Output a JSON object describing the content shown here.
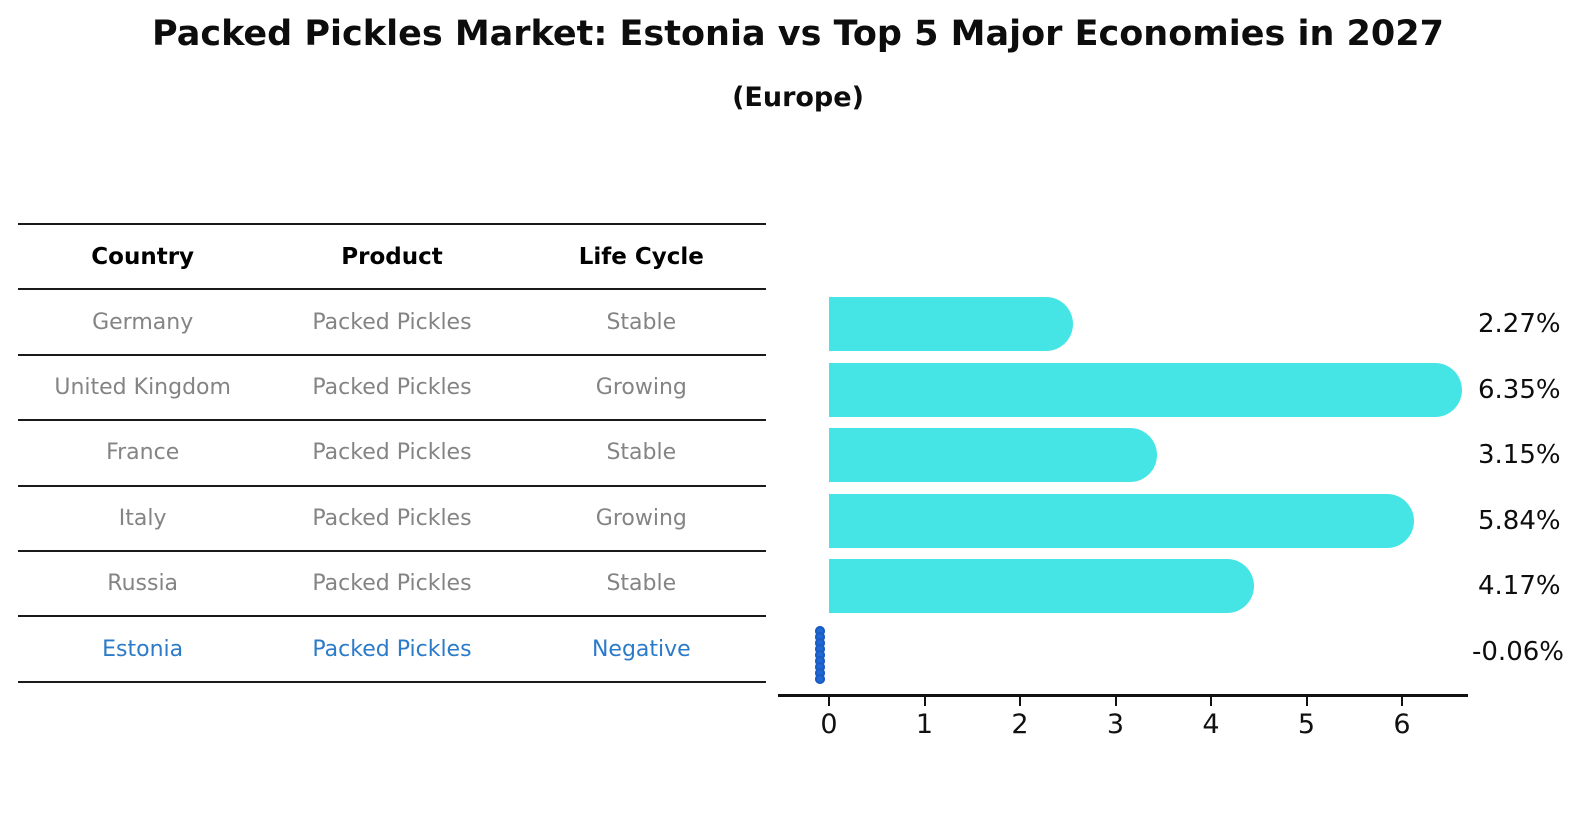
{
  "title": "Packed Pickles Market: Estonia vs Top 5 Major Economies in 2027",
  "subtitle": "(Europe)",
  "table": {
    "headers": [
      "Country",
      "Product",
      "Life Cycle"
    ],
    "rows": [
      {
        "country": "Germany",
        "product": "Packed Pickles",
        "life_cycle": "Stable",
        "highlighted": false
      },
      {
        "country": "United Kingdom",
        "product": "Packed Pickles",
        "life_cycle": "Growing",
        "highlighted": false
      },
      {
        "country": "France",
        "product": "Packed Pickles",
        "life_cycle": "Stable",
        "highlighted": false
      },
      {
        "country": "Italy",
        "product": "Packed Pickles",
        "life_cycle": "Growing",
        "highlighted": false
      },
      {
        "country": "Russia",
        "product": "Packed Pickles",
        "life_cycle": "Stable",
        "highlighted": false
      },
      {
        "country": "Estonia",
        "product": "Packed Pickles",
        "life_cycle": "Negative",
        "highlighted": true
      }
    ]
  },
  "chart_data": {
    "type": "bar",
    "orientation": "horizontal",
    "title": "Packed Pickles Market: Estonia vs Top 5 Major Economies in 2027",
    "subtitle": "(Europe)",
    "categories": [
      "Germany",
      "United Kingdom",
      "France",
      "Italy",
      "Russia",
      "Estonia"
    ],
    "values": [
      2.27,
      6.35,
      3.15,
      5.84,
      4.17,
      -0.06
    ],
    "value_labels": [
      "2.27%",
      "6.35%",
      "3.15%",
      "5.84%",
      "4.17%",
      "-0.06%"
    ],
    "xlabel": "",
    "ylabel": "",
    "xticks": [
      0,
      1,
      2,
      3,
      4,
      5,
      6
    ],
    "xtick_labels": [
      "0",
      "1",
      "2",
      "3",
      "4",
      "5",
      "6"
    ],
    "xlim": [
      -0.1,
      6.7
    ],
    "grid": false,
    "legend": "none",
    "bar_color": "#45E4E5",
    "negative_marker_color": "#2268D1",
    "highlight_text_color": "#2B7BC8"
  },
  "colors": {
    "bar_cyan": "#45E4E5",
    "estonia_blue": "#2B7BC8",
    "marker_blue": "#2268D1",
    "table_text_gray": "#848484",
    "axis_black": "#111111"
  }
}
